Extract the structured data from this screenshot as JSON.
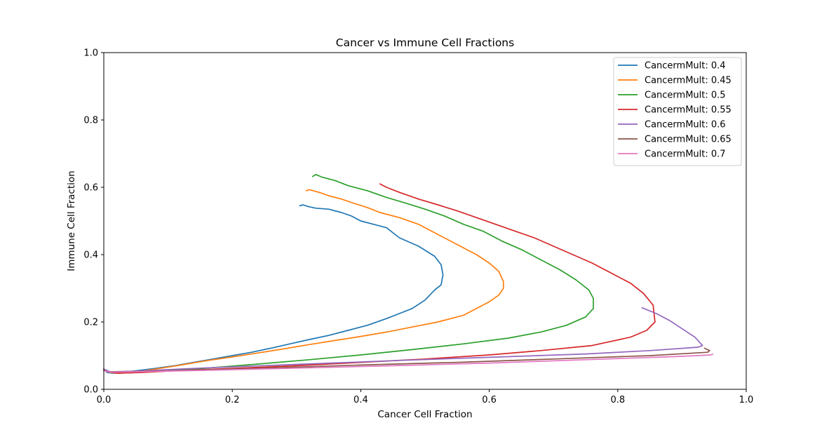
{
  "chart_data": {
    "type": "line",
    "title": "Cancer vs Immune Cell Fractions",
    "xlabel": "Cancer Cell Fraction",
    "ylabel": "Immune Cell Fraction",
    "xlim": [
      0,
      1
    ],
    "ylim": [
      0,
      1
    ],
    "xticks": [
      "0.0",
      "0.2",
      "0.4",
      "0.6",
      "0.8",
      "1.0"
    ],
    "yticks": [
      "0.0",
      "0.2",
      "0.4",
      "0.6",
      "0.8",
      "1.0"
    ],
    "grid": false,
    "legend_position": "top-right",
    "series": [
      {
        "name": "CancermMult: 0.4",
        "color": "#1f77b4",
        "x": [
          0.305,
          0.31,
          0.318,
          0.33,
          0.35,
          0.37,
          0.385,
          0.4,
          0.42,
          0.44,
          0.46,
          0.49,
          0.515,
          0.525,
          0.528,
          0.525,
          0.515,
          0.5,
          0.48,
          0.46,
          0.44,
          0.41,
          0.38,
          0.35,
          0.32,
          0.29,
          0.26,
          0.23,
          0.2,
          0.17,
          0.14,
          0.11,
          0.08,
          0.05,
          0.03,
          0.015,
          0.005,
          0.0
        ],
        "y": [
          0.545,
          0.548,
          0.543,
          0.538,
          0.535,
          0.525,
          0.515,
          0.5,
          0.49,
          0.48,
          0.45,
          0.425,
          0.395,
          0.37,
          0.34,
          0.31,
          0.295,
          0.265,
          0.24,
          0.225,
          0.21,
          0.19,
          0.175,
          0.16,
          0.148,
          0.135,
          0.122,
          0.11,
          0.1,
          0.09,
          0.08,
          0.07,
          0.062,
          0.055,
          0.05,
          0.048,
          0.05,
          0.06
        ]
      },
      {
        "name": "CancermMult: 0.45",
        "color": "#ff7f0e",
        "x": [
          0.315,
          0.32,
          0.335,
          0.35,
          0.37,
          0.39,
          0.41,
          0.43,
          0.46,
          0.49,
          0.52,
          0.55,
          0.58,
          0.6,
          0.615,
          0.622,
          0.622,
          0.615,
          0.6,
          0.58,
          0.56,
          0.52,
          0.48,
          0.44,
          0.4,
          0.36,
          0.32,
          0.28,
          0.24,
          0.2,
          0.16,
          0.12,
          0.08,
          0.05,
          0.025,
          0.01,
          0.0
        ],
        "y": [
          0.59,
          0.593,
          0.585,
          0.575,
          0.565,
          0.552,
          0.54,
          0.525,
          0.51,
          0.49,
          0.46,
          0.43,
          0.4,
          0.375,
          0.35,
          0.32,
          0.3,
          0.28,
          0.26,
          0.24,
          0.22,
          0.2,
          0.185,
          0.17,
          0.157,
          0.145,
          0.133,
          0.12,
          0.108,
          0.096,
          0.085,
          0.072,
          0.06,
          0.052,
          0.048,
          0.05,
          0.06
        ]
      },
      {
        "name": "CancermMult: 0.5",
        "color": "#2ca02c",
        "x": [
          0.325,
          0.33,
          0.34,
          0.36,
          0.38,
          0.41,
          0.44,
          0.47,
          0.5,
          0.53,
          0.56,
          0.59,
          0.62,
          0.65,
          0.68,
          0.71,
          0.735,
          0.755,
          0.762,
          0.762,
          0.75,
          0.72,
          0.68,
          0.63,
          0.56,
          0.48,
          0.4,
          0.32,
          0.24,
          0.16,
          0.1,
          0.05,
          0.02,
          0.005,
          0.0
        ],
        "y": [
          0.632,
          0.638,
          0.63,
          0.62,
          0.605,
          0.59,
          0.57,
          0.553,
          0.535,
          0.515,
          0.49,
          0.47,
          0.44,
          0.415,
          0.385,
          0.355,
          0.325,
          0.295,
          0.27,
          0.24,
          0.215,
          0.19,
          0.17,
          0.152,
          0.135,
          0.118,
          0.102,
          0.088,
          0.075,
          0.063,
          0.055,
          0.05,
          0.048,
          0.052,
          0.06
        ]
      },
      {
        "name": "CancermMult: 0.55",
        "color": "#d62728",
        "x": [
          0.43,
          0.44,
          0.46,
          0.49,
          0.52,
          0.55,
          0.58,
          0.61,
          0.64,
          0.67,
          0.7,
          0.73,
          0.76,
          0.79,
          0.82,
          0.84,
          0.855,
          0.858,
          0.845,
          0.82,
          0.76,
          0.68,
          0.6,
          0.5,
          0.4,
          0.3,
          0.2,
          0.12,
          0.06,
          0.02,
          0.005,
          0.0
        ],
        "y": [
          0.61,
          0.6,
          0.585,
          0.565,
          0.548,
          0.53,
          0.51,
          0.49,
          0.47,
          0.45,
          0.425,
          0.4,
          0.375,
          0.345,
          0.315,
          0.285,
          0.25,
          0.2,
          0.175,
          0.155,
          0.13,
          0.115,
          0.102,
          0.09,
          0.08,
          0.07,
          0.062,
          0.056,
          0.05,
          0.048,
          0.052,
          0.06
        ]
      },
      {
        "name": "CancermMult: 0.6",
        "color": "#9467bd",
        "x": [
          0.838,
          0.86,
          0.88,
          0.9,
          0.92,
          0.932,
          0.925,
          0.85,
          0.75,
          0.6,
          0.45,
          0.3,
          0.15,
          0.05,
          0.01,
          0.0
        ],
        "y": [
          0.242,
          0.225,
          0.205,
          0.18,
          0.155,
          0.13,
          0.125,
          0.115,
          0.105,
          0.095,
          0.085,
          0.074,
          0.063,
          0.054,
          0.052,
          0.06
        ]
      },
      {
        "name": "CancermMult: 0.65",
        "color": "#8c564b",
        "x": [
          0.935,
          0.943,
          0.94,
          0.85,
          0.7,
          0.55,
          0.4,
          0.25,
          0.1,
          0.03,
          0.005,
          0.0
        ],
        "y": [
          0.122,
          0.115,
          0.11,
          0.1,
          0.09,
          0.08,
          0.072,
          0.063,
          0.055,
          0.052,
          0.052,
          0.058
        ]
      },
      {
        "name": "CancermMult: 0.7",
        "color": "#e377c2",
        "x": [
          0.948,
          0.945,
          0.9,
          0.75,
          0.6,
          0.45,
          0.3,
          0.15,
          0.05,
          0.01,
          0.0
        ],
        "y": [
          0.104,
          0.102,
          0.098,
          0.088,
          0.078,
          0.07,
          0.063,
          0.056,
          0.052,
          0.051,
          0.055
        ]
      }
    ]
  }
}
